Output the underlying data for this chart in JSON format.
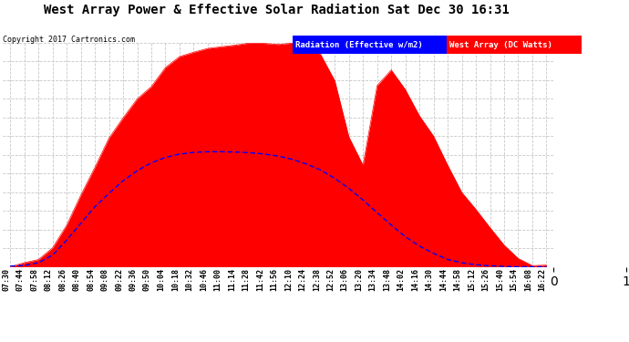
{
  "title": "West Array Power & Effective Solar Radiation Sat Dec 30 16:31",
  "copyright": "Copyright 2017 Cartronics.com",
  "legend_items": [
    "Radiation (Effective w/m2)",
    "West Array (DC Watts)"
  ],
  "y_max": 671.8,
  "y_ticks": [
    0.0,
    56.0,
    112.0,
    168.0,
    223.9,
    279.9,
    335.9,
    391.9,
    447.9,
    503.9,
    559.9,
    615.8,
    671.8
  ],
  "bg_color": "#ffffff",
  "grid_color": "#c8c8c8",
  "fill_color": "#ff0000",
  "line_color": "#0000ff",
  "x_labels": [
    "07:30",
    "07:44",
    "07:58",
    "08:12",
    "08:26",
    "08:40",
    "08:54",
    "09:08",
    "09:22",
    "09:36",
    "09:50",
    "10:04",
    "10:18",
    "10:32",
    "10:46",
    "11:00",
    "11:14",
    "11:28",
    "11:42",
    "11:56",
    "12:10",
    "12:24",
    "12:38",
    "12:52",
    "13:06",
    "13:20",
    "13:34",
    "13:48",
    "14:02",
    "14:16",
    "14:30",
    "14:44",
    "14:58",
    "15:12",
    "15:26",
    "15:40",
    "15:54",
    "16:08",
    "16:22"
  ],
  "power_values": [
    2,
    5,
    18,
    55,
    130,
    220,
    305,
    380,
    445,
    500,
    548,
    590,
    625,
    648,
    660,
    665,
    668,
    671,
    671,
    670,
    669,
    665,
    640,
    560,
    390,
    300,
    548,
    590,
    530,
    460,
    390,
    310,
    230,
    165,
    110,
    60,
    28,
    10,
    2
  ],
  "radiation_values": [
    2,
    4,
    12,
    35,
    80,
    130,
    180,
    220,
    258,
    288,
    312,
    328,
    338,
    343,
    345,
    345,
    344,
    342,
    338,
    332,
    322,
    308,
    290,
    265,
    235,
    200,
    162,
    125,
    90,
    62,
    40,
    22,
    12,
    6,
    3,
    1,
    0,
    0,
    0
  ]
}
